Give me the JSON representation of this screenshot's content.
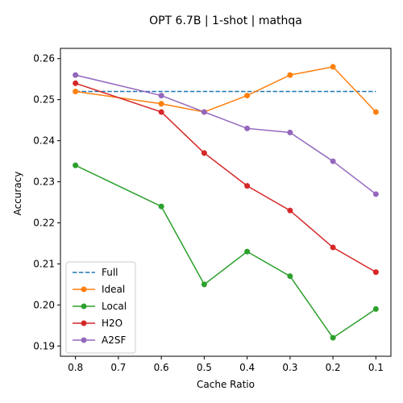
{
  "chart_data": {
    "type": "line",
    "title": "OPT 6.7B | 1-shot | mathqa",
    "xlabel": "Cache Ratio",
    "ylabel": "Accuracy",
    "x": [
      0.8,
      0.6,
      0.5,
      0.4,
      0.3,
      0.2,
      0.1
    ],
    "x_ticks": [
      0.8,
      0.7,
      0.6,
      0.5,
      0.4,
      0.3,
      0.2,
      0.1
    ],
    "x_tick_labels": [
      "0.8",
      "0.7",
      "0.6",
      "0.5",
      "0.4",
      "0.3",
      "0.2",
      "0.1"
    ],
    "x_reversed": true,
    "xlim": [
      0.8,
      0.1
    ],
    "ylim": [
      0.19,
      0.26
    ],
    "y_ticks": [
      0.19,
      0.2,
      0.21,
      0.22,
      0.23,
      0.24,
      0.25,
      0.26
    ],
    "y_tick_labels": [
      "0.19",
      "0.20",
      "0.21",
      "0.22",
      "0.23",
      "0.24",
      "0.25",
      "0.26"
    ],
    "grid": false,
    "legend_position": "lower-left",
    "series": [
      {
        "name": "Full",
        "style": "dashed",
        "marker": false,
        "color": "#1f77b4",
        "values": [
          0.252,
          0.252,
          0.252,
          0.252,
          0.252,
          0.252,
          0.252
        ]
      },
      {
        "name": "Ideal",
        "style": "solid",
        "marker": true,
        "color": "#ff7f0e",
        "values": [
          0.252,
          0.249,
          0.247,
          0.251,
          0.256,
          0.258,
          0.247
        ]
      },
      {
        "name": "Local",
        "style": "solid",
        "marker": true,
        "color": "#2ca02c",
        "values": [
          0.234,
          0.224,
          0.205,
          0.213,
          0.207,
          0.192,
          0.199
        ]
      },
      {
        "name": "H2O",
        "style": "solid",
        "marker": true,
        "color": "#d62728",
        "values": [
          0.254,
          0.247,
          0.237,
          0.229,
          0.223,
          0.214,
          0.208
        ]
      },
      {
        "name": "A2SF",
        "style": "solid",
        "marker": true,
        "color": "#9467bd",
        "values": [
          0.256,
          0.251,
          0.247,
          0.243,
          0.242,
          0.235,
          0.227
        ]
      }
    ]
  }
}
